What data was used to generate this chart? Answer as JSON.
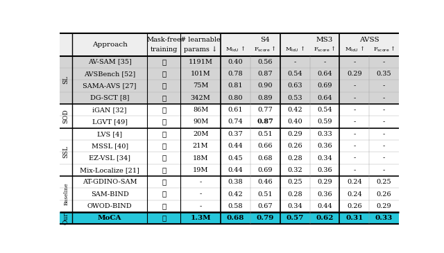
{
  "groups": [
    {
      "label": "SL",
      "bg_color": "#d9d9d9",
      "rows": [
        [
          "AV-SAM [35]",
          "✗",
          "1191M",
          "0.40",
          "0.56",
          "-",
          "-",
          "-",
          "-"
        ],
        [
          "AVSBench [52]",
          "✗",
          "101M",
          "0.78",
          "0.87",
          "0.54",
          "0.64",
          "0.29",
          "0.35"
        ],
        [
          "SAMA-AVS [27]",
          "✗",
          "75M",
          "0.81",
          "0.90",
          "0.63",
          "0.69",
          "-",
          "-"
        ],
        [
          "DG-SCT [8]",
          "✗",
          "342M",
          "0.80",
          "0.89",
          "0.53",
          "0.64",
          "-",
          "-"
        ]
      ]
    },
    {
      "label": "SOD",
      "bg_color": "#ffffff",
      "rows": [
        [
          "iGAN [32]",
          "✓",
          "86M",
          "0.61",
          "0.77",
          "0.42",
          "0.54",
          "-",
          "-"
        ],
        [
          "LGVT [49]",
          "✓",
          "90M",
          "0.74",
          "0.87",
          "0.40",
          "0.59",
          "-",
          "-"
        ]
      ]
    },
    {
      "label": "SSL",
      "bg_color": "#ffffff",
      "rows": [
        [
          "LVS [4]",
          "✓",
          "20M",
          "0.37",
          "0.51",
          "0.29",
          "0.33",
          "-",
          "-"
        ],
        [
          "MSSL [40]",
          "✓",
          "21M",
          "0.44",
          "0.66",
          "0.26",
          "0.36",
          "-",
          "-"
        ],
        [
          "EZ-VSL [34]",
          "✓",
          "18M",
          "0.45",
          "0.68",
          "0.28",
          "0.34",
          "-",
          "-"
        ],
        [
          "Mix-Localize [21]",
          "✓",
          "19M",
          "0.44",
          "0.69",
          "0.32",
          "0.36",
          "-",
          "-"
        ]
      ]
    },
    {
      "label": "Baseline",
      "bg_color": "#ffffff",
      "rows": [
        [
          "AT-GDINO-SAM",
          "✓",
          "-",
          "0.38",
          "0.46",
          "0.25",
          "0.29",
          "0.24",
          "0.25"
        ],
        [
          "SAM-BIND",
          "✓",
          "-",
          "0.42",
          "0.51",
          "0.28",
          "0.36",
          "0.24",
          "0.26"
        ],
        [
          "OWOD-BIND",
          "✓",
          "-",
          "0.58",
          "0.67",
          "0.34",
          "0.44",
          "0.26",
          "0.29"
        ]
      ]
    }
  ],
  "our_row": [
    "MoCA",
    "✓",
    "1.3M",
    "0.68",
    "0.79",
    "0.57",
    "0.62",
    "0.31",
    "0.33"
  ],
  "our_bg": "#26c6da",
  "our_label": "Our",
  "header_bg": "#eeeeee",
  "sl_bg": "#d4d4d4",
  "lgvt_bold_col": 4,
  "lgvt_row_in_group": 1
}
